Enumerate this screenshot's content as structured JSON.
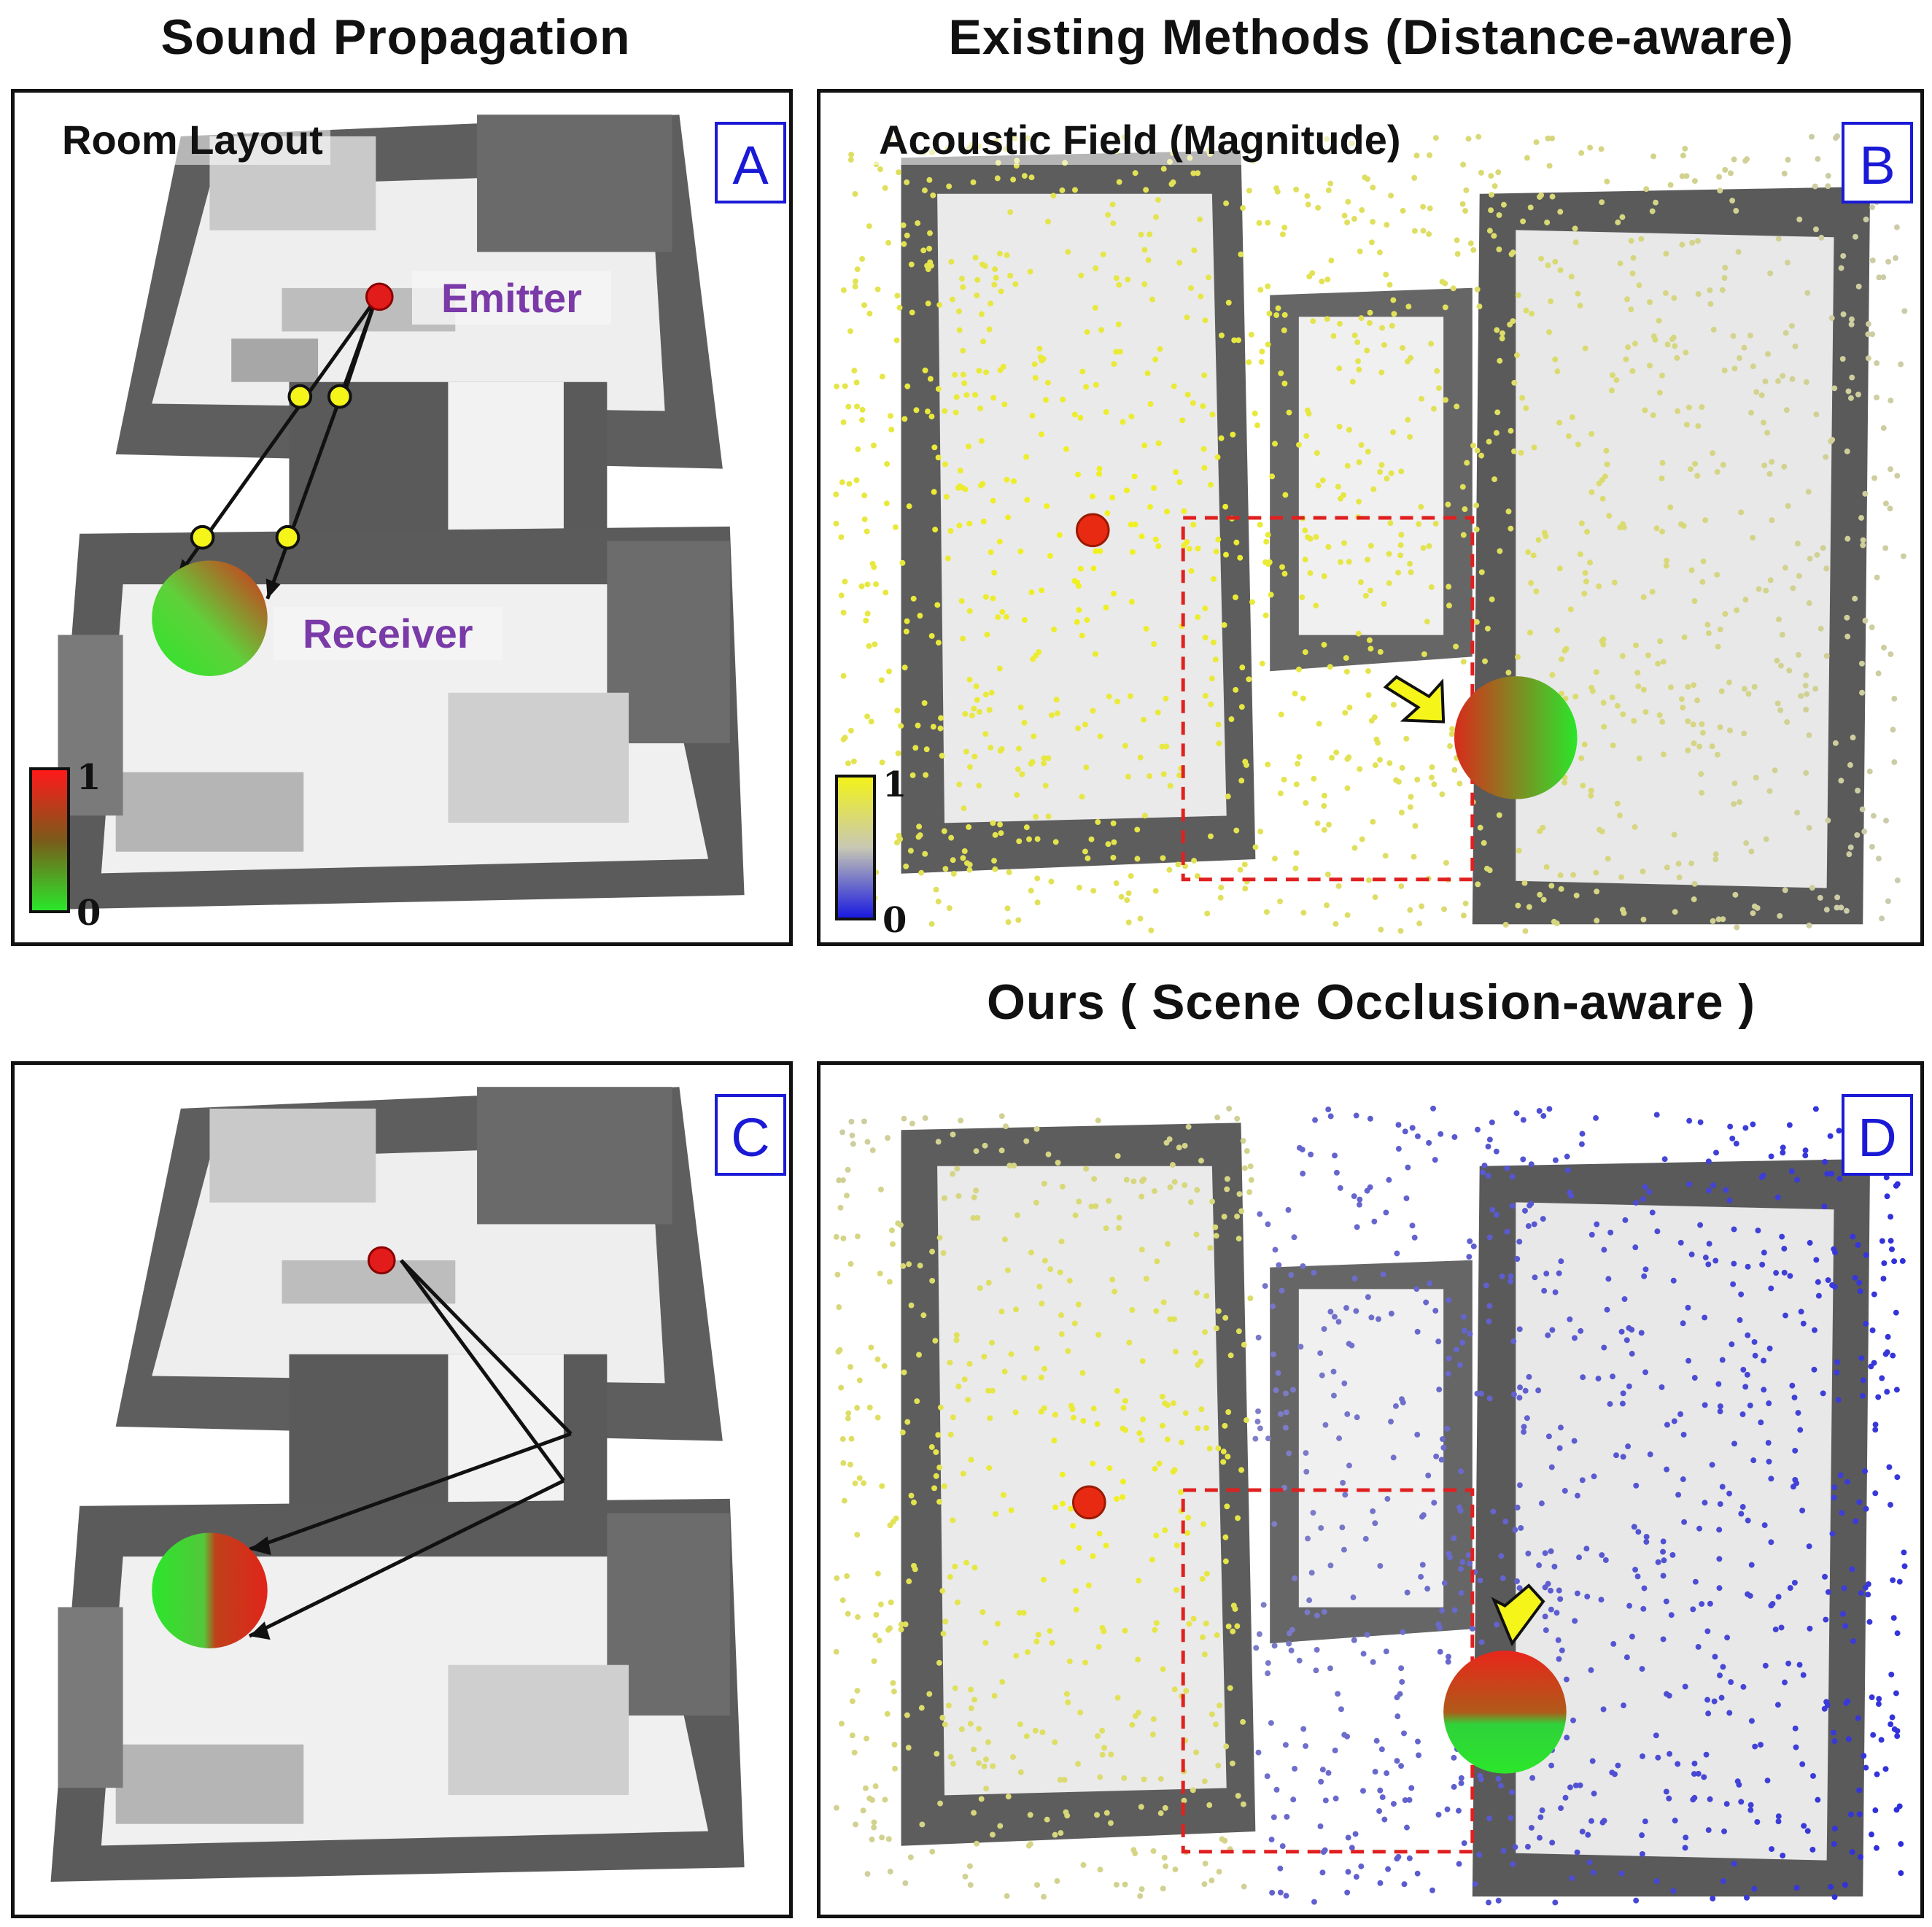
{
  "headings": {
    "sound_propagation": "Sound Propagation",
    "existing_methods": "Existing Methods (Distance-aware)",
    "ours": "Ours ( Scene Occlusion-aware )"
  },
  "panels": {
    "a": {
      "letter": "A",
      "tag": "Room Layout",
      "emitter_label": "Emitter",
      "receiver_label": "Receiver"
    },
    "b": {
      "letter": "B",
      "tag": "Acoustic Field (Magnitude)"
    },
    "c": {
      "letter": "C"
    },
    "d": {
      "letter": "D"
    }
  },
  "colorbars": {
    "propagation": {
      "max": "1",
      "min": "0",
      "colors": [
        "#ff1a1a",
        "#2be62b"
      ]
    },
    "field": {
      "max": "1",
      "min": "0",
      "colors": [
        "#f2f21a",
        "#1a1ae0"
      ]
    }
  },
  "colors": {
    "panel_border": "#111111",
    "letter_blue": "#1a1ad6",
    "label_purple": "#7a3aa8",
    "roi_dash": "#e02020",
    "arrow_yellow": "#f5f51a",
    "wall_gray": "#8a8a8a",
    "floor_gray": "#e6e6e6"
  }
}
